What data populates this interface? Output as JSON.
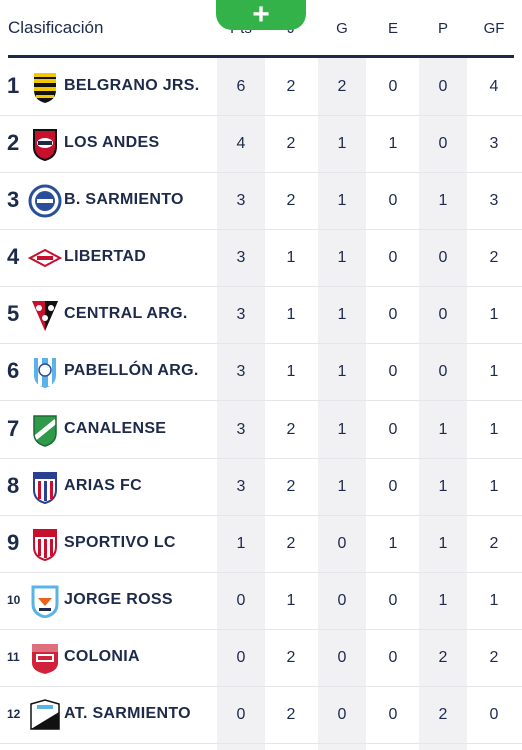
{
  "header": {
    "title": "Clasificación",
    "columns": [
      "Pts",
      "J",
      "G",
      "E",
      "P",
      "GF"
    ],
    "add_label": "+"
  },
  "rows": [
    {
      "pos": "1",
      "team": "BELGRANO JRS.",
      "stats": [
        "6",
        "2",
        "2",
        "0",
        "0",
        "4"
      ]
    },
    {
      "pos": "2",
      "team": "LOS ANDES",
      "stats": [
        "4",
        "2",
        "1",
        "1",
        "0",
        "3"
      ]
    },
    {
      "pos": "3",
      "team": "B. SARMIENTO",
      "stats": [
        "3",
        "2",
        "1",
        "0",
        "1",
        "3"
      ]
    },
    {
      "pos": "4",
      "team": "LIBERTAD",
      "stats": [
        "3",
        "1",
        "1",
        "0",
        "0",
        "2"
      ]
    },
    {
      "pos": "5",
      "team": "CENTRAL ARG.",
      "stats": [
        "3",
        "1",
        "1",
        "0",
        "0",
        "1"
      ]
    },
    {
      "pos": "6",
      "team": "PABELLÓN ARG.",
      "stats": [
        "3",
        "1",
        "1",
        "0",
        "0",
        "1"
      ]
    },
    {
      "pos": "7",
      "team": "CANALENSE",
      "stats": [
        "3",
        "2",
        "1",
        "0",
        "1",
        "1"
      ]
    },
    {
      "pos": "8",
      "team": "ARIAS FC",
      "stats": [
        "3",
        "2",
        "1",
        "0",
        "1",
        "1"
      ]
    },
    {
      "pos": "9",
      "team": "SPORTIVO LC",
      "stats": [
        "1",
        "2",
        "0",
        "1",
        "1",
        "2"
      ]
    },
    {
      "pos": "10",
      "team": "JORGE ROSS",
      "stats": [
        "0",
        "1",
        "0",
        "0",
        "1",
        "1"
      ]
    },
    {
      "pos": "11",
      "team": "COLONIA",
      "stats": [
        "0",
        "2",
        "0",
        "0",
        "2",
        "2"
      ]
    },
    {
      "pos": "12",
      "team": "AT. SARMIENTO",
      "stats": [
        "0",
        "2",
        "0",
        "0",
        "2",
        "0"
      ]
    }
  ]
}
